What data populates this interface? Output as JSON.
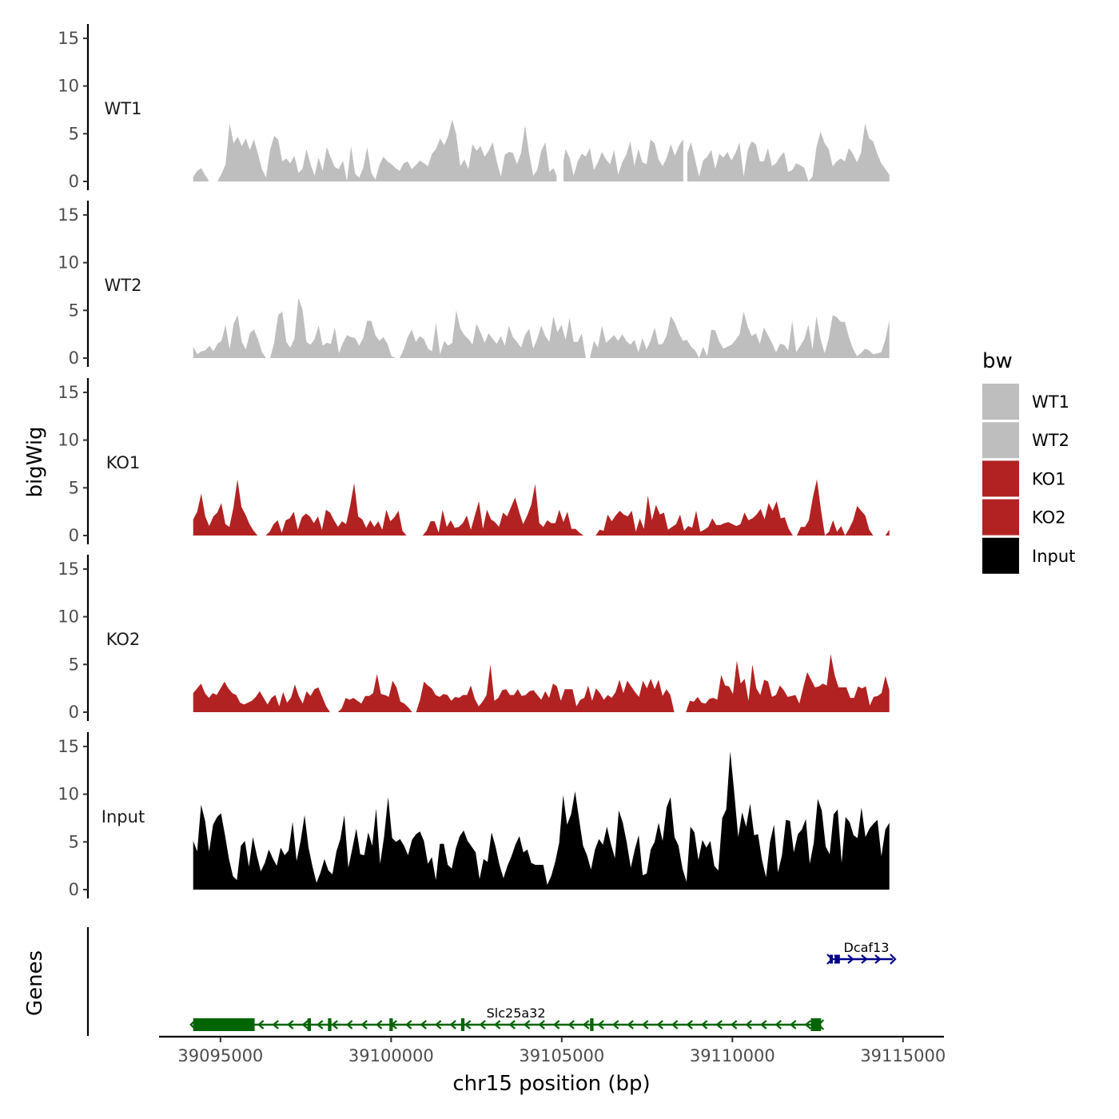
{
  "chart_data": {
    "type": "area",
    "layout": "stacked-genome-tracks",
    "ylabel": "bigWig",
    "xlabel": "chr15 position (bp)",
    "genes_label": "Genes",
    "x_range": [
      39093200,
      39116200
    ],
    "x_ticks": [
      39095000,
      39100000,
      39105000,
      39110000,
      39115000
    ],
    "x_tick_labels": [
      "39095000",
      "39100000",
      "39105000",
      "39110000",
      "39115000"
    ],
    "y_range": [
      0,
      16.5
    ],
    "y_ticks": [
      0,
      5,
      10,
      15
    ],
    "y_tick_labels": [
      "0",
      "5",
      "10",
      "15"
    ],
    "data_x_start": 39094200,
    "data_x_end": 39114600,
    "bin_size": 200,
    "legend": {
      "title": "bw",
      "entries": [
        {
          "label": "WT1",
          "color": "#bebebe"
        },
        {
          "label": "WT2",
          "color": "#bebebe"
        },
        {
          "label": "KO1",
          "color": "#b22222"
        },
        {
          "label": "KO2",
          "color": "#b22222"
        },
        {
          "label": "Input",
          "color": "#000000"
        }
      ]
    },
    "series": [
      {
        "name": "WT1",
        "color": "#bebebe",
        "values": [
          0.5,
          1.1,
          1.4,
          0.6,
          0,
          0,
          0,
          0.8,
          1.8,
          6.1,
          4.0,
          4.7,
          3.7,
          4.5,
          3.3,
          4.4,
          2.9,
          1.3,
          0.4,
          3.3,
          4.8,
          4.4,
          2.1,
          2.4,
          1.9,
          2.7,
          0.9,
          1.3,
          3.4,
          1.8,
          0.6,
          2.5,
          1.1,
          3.6,
          2.5,
          1.5,
          1.3,
          2.2,
          0,
          3.7,
          0.8,
          0.4,
          1.4,
          3.6,
          0.9,
          0.2,
          1.7,
          2.6,
          2.1,
          1.8,
          1.4,
          1.1,
          1.9,
          2.1,
          1.3,
          1.7,
          2.2,
          1.9,
          1.6,
          2.9,
          3.4,
          4.5,
          3.8,
          4.8,
          6.5,
          4.9,
          1.6,
          2.3,
          1.3,
          3.9,
          3.2,
          3.7,
          2.6,
          3.2,
          4.1,
          2.1,
          0.5,
          2.8,
          3.1,
          3.0,
          1.8,
          3.0,
          5.9,
          2.9,
          0.6,
          1.2,
          3.2,
          4.1,
          1.0,
          1.4,
          0.4,
          0.9,
          3.4,
          2.5,
          0.6,
          2.1,
          2.9,
          2.6,
          3.5,
          1.2,
          2.0,
          3.1,
          2.3,
          1.8,
          3.3,
          0.7,
          2.0,
          2.8,
          4.2,
          1.6,
          3.4,
          2.0,
          1.8,
          4.4,
          4.0,
          2.3,
          1.6,
          2.5,
          3.9,
          2.7,
          3.7,
          4.4,
          2.9,
          4.1,
          2.3,
          0.5,
          2.2,
          2.6,
          3.3,
          1.3,
          2.9,
          2.5,
          3.1,
          2.2,
          3.0,
          4.1,
          0.5,
          3.3,
          4.2,
          3.9,
          2.1,
          2.1,
          3.5,
          1.6,
          1.9,
          2.6,
          3.1,
          1.0,
          1.2,
          1.9,
          1.7,
          1.4,
          0,
          0.5,
          3.6,
          5.2,
          4.0,
          3.4,
          1.6,
          2.1,
          2.4,
          2.1,
          3.5,
          2.9,
          2.0,
          3.0,
          6.1,
          4.5,
          4.2,
          2.9,
          1.9,
          1.3,
          0.7
        ],
        "gaps": [
          [
            39094650,
            39094870
          ],
          [
            39104850,
            39105050
          ],
          [
            39108560,
            39108680
          ]
        ]
      },
      {
        "name": "WT2",
        "color": "#bebebe",
        "values": [
          1.2,
          0.4,
          0.7,
          0.8,
          1.3,
          0.7,
          1.5,
          1.8,
          3.5,
          0.9,
          3.6,
          4.5,
          1.7,
          0.9,
          2.6,
          3.0,
          2.0,
          0.6,
          0,
          0,
          1.6,
          4.5,
          4.9,
          1.7,
          1.1,
          2.0,
          6.3,
          5.1,
          1.7,
          1.4,
          2.0,
          3.4,
          1.3,
          1.6,
          1.5,
          3.2,
          0.5,
          1.6,
          2.4,
          2.2,
          2.1,
          1.3,
          2.1,
          3.9,
          3.9,
          2.4,
          1.8,
          2.2,
          1.5,
          0.2,
          0,
          0,
          0.9,
          2.2,
          3.0,
          1.7,
          2.3,
          2.0,
          1.0,
          0.7,
          3.7,
          0.4,
          1.8,
          1.3,
          1.6,
          5.0,
          3.1,
          2.4,
          2.0,
          1.4,
          3.6,
          2.7,
          1.6,
          2.6,
          2.0,
          1.5,
          2.3,
          1.3,
          3.4,
          2.2,
          1.7,
          1.1,
          2.4,
          3.1,
          1.0,
          2.0,
          3.4,
          2.3,
          1.7,
          4.4,
          2.7,
          3.5,
          1.9,
          4.2,
          1.7,
          1.7,
          2.6,
          0,
          0,
          1.8,
          1.1,
          3.4,
          1.6,
          2.0,
          2.4,
          1.8,
          2.5,
          1.8,
          1.4,
          1.9,
          0.6,
          2.1,
          0.9,
          1.8,
          3.2,
          1.4,
          1.5,
          2.4,
          4.4,
          3.7,
          2.6,
          1.8,
          1.9,
          1.2,
          0.8,
          0,
          1.2,
          0.2,
          3.0,
          2.9,
          1.7,
          1.0,
          1.2,
          1.4,
          1.9,
          2.5,
          4.9,
          3.3,
          2.3,
          2.6,
          1.5,
          3.2,
          2.4,
          1.6,
          0.6,
          1.5,
          1.4,
          0.8,
          3.9,
          0.6,
          1.3,
          2.0,
          3.5,
          0.9,
          4.4,
          2.0,
          0.5,
          2.0,
          4.5,
          4.3,
          3.8,
          3.8,
          2.2,
          1.0,
          0.2,
          0.5,
          1.0,
          0.8,
          0.4,
          0.5,
          0.6,
          1.9,
          4.0
        ]
      },
      {
        "name": "KO1",
        "color": "#b22222",
        "values": [
          1.7,
          2.5,
          4.4,
          2.0,
          1.0,
          2.0,
          2.4,
          3.4,
          1.2,
          0.9,
          2.9,
          5.9,
          3.0,
          2.2,
          1.2,
          0.5,
          0,
          0,
          0,
          0.4,
          1.2,
          1.6,
          0.3,
          1.6,
          1.8,
          2.5,
          0.6,
          1.9,
          2.3,
          2.0,
          1.3,
          2.0,
          0.6,
          2.7,
          2.4,
          1.6,
          0.9,
          1.5,
          1.2,
          3.1,
          5.5,
          2.0,
          1.7,
          0.8,
          1.6,
          0.9,
          1.5,
          0.6,
          2.7,
          1.5,
          1.9,
          2.6,
          0.5,
          0,
          0,
          0,
          0,
          0,
          0.5,
          1.5,
          1.5,
          0.3,
          2.7,
          0.9,
          1.6,
          0.8,
          0.9,
          1.3,
          2.1,
          0.6,
          2.1,
          3.6,
          0.7,
          2.7,
          1.7,
          1.4,
          0.9,
          2.4,
          2.0,
          3.0,
          4.0,
          2.5,
          1.2,
          2.1,
          3.2,
          5.4,
          1.3,
          0.9,
          1.6,
          1.3,
          1.3,
          2.7,
          1.4,
          2.5,
          0.7,
          0.7,
          0.3,
          0,
          0,
          0,
          0,
          0.6,
          0.5,
          2.2,
          1.5,
          2.1,
          2.6,
          2.2,
          2.0,
          2.6,
          0.4,
          1.8,
          0.7,
          4.2,
          1.6,
          3.2,
          2.2,
          2.4,
          0.6,
          0.9,
          1.2,
          2.2,
          0.5,
          1.0,
          0.8,
          2.6,
          0.4,
          0.6,
          0.9,
          1.8,
          1.1,
          1.1,
          1.3,
          1.4,
          1.2,
          1.0,
          1.2,
          2.4,
          1.6,
          1.8,
          2.2,
          2.8,
          1.7,
          3.4,
          2.6,
          3.6,
          1.8,
          1.9,
          0.7,
          0,
          0,
          0.9,
          0.9,
          1.6,
          4.0,
          5.9,
          2.7,
          0,
          0.4,
          1.6,
          0.4,
          1.0,
          0,
          0.7,
          1.6,
          3.1,
          2.6,
          2.1,
          0.6,
          0,
          0,
          0,
          0,
          0.6
        ]
      },
      {
        "name": "KO2",
        "color": "#b22222",
        "values": [
          2.0,
          2.5,
          3.0,
          2.0,
          1.5,
          2.0,
          1.8,
          2.5,
          3.2,
          2.5,
          2.0,
          1.8,
          1.0,
          0.8,
          1.0,
          1.2,
          1.6,
          2.2,
          1.5,
          0.8,
          1.5,
          1.8,
          0.6,
          2.1,
          1.0,
          1.5,
          2.9,
          1.7,
          0.9,
          2.2,
          1.7,
          2.4,
          2.6,
          1.6,
          0.6,
          0,
          0,
          0,
          0.4,
          1.5,
          1.3,
          1.5,
          1.2,
          0.9,
          1.7,
          1.7,
          2.0,
          4.0,
          1.9,
          1.8,
          1.6,
          3.3,
          2.6,
          1.1,
          0.9,
          0.5,
          0,
          0,
          1.3,
          3.2,
          2.8,
          2.5,
          1.8,
          1.6,
          1.9,
          1.8,
          1.2,
          1.6,
          1.5,
          1.8,
          1.8,
          2.8,
          1.4,
          0.6,
          1.1,
          1.8,
          5.0,
          1.2,
          1.5,
          2.3,
          2.4,
          1.8,
          1.8,
          2.4,
          1.7,
          1.8,
          2.2,
          2.3,
          1.8,
          1.3,
          2.2,
          1.5,
          3.0,
          2.7,
          1.2,
          2.4,
          2.4,
          2.4,
          0.6,
          1.3,
          1.5,
          2.8,
          1.2,
          2.5,
          2.0,
          1.3,
          1.8,
          1.5,
          2.1,
          3.4,
          2.0,
          3.3,
          2.7,
          2.1,
          1.6,
          3.3,
          2.5,
          3.5,
          2.4,
          3.4,
          1.7,
          2.4,
          1.8,
          0,
          0,
          0,
          0,
          1.2,
          1.1,
          1.6,
          1.0,
          0.9,
          1.4,
          1.5,
          1.3,
          3.9,
          2.8,
          2.7,
          1.9,
          5.4,
          3.0,
          3.5,
          1.2,
          5.0,
          2.5,
          1.8,
          3.4,
          3.2,
          1.6,
          1.8,
          2.8,
          2.3,
          1.6,
          1.7,
          1.8,
          0.9,
          2.6,
          4.2,
          3.4,
          2.6,
          2.7,
          3.0,
          2.8,
          6.1,
          3.9,
          2.6,
          2.6,
          2.6,
          1.5,
          1.5,
          2.7,
          2.5,
          2.7,
          0.7,
          1.6,
          1.7,
          2.0,
          3.8,
          2.3
        ]
      },
      {
        "name": "Input",
        "color": "#000000",
        "values": [
          5.1,
          4.0,
          8.9,
          7.2,
          4.0,
          6.8,
          7.6,
          8.0,
          5.7,
          3.2,
          1.4,
          1.0,
          4.6,
          5.1,
          2.4,
          5.5,
          3.6,
          1.9,
          2.8,
          4.2,
          3.3,
          2.5,
          4.4,
          3.6,
          4.1,
          7.1,
          3.0,
          5.1,
          7.8,
          4.4,
          2.4,
          0.7,
          1.8,
          3.2,
          2.0,
          1.6,
          4.0,
          5.3,
          7.8,
          2.3,
          4.3,
          6.4,
          3.7,
          3.6,
          6.0,
          4.6,
          8.5,
          2.7,
          5.6,
          9.7,
          5.4,
          5.0,
          5.3,
          4.6,
          3.6,
          5.2,
          5.8,
          6.1,
          5.1,
          2.7,
          3.4,
          1.0,
          4.8,
          4.8,
          2.6,
          2.2,
          4.3,
          5.6,
          6.2,
          5.1,
          4.5,
          3.9,
          1.1,
          3.2,
          2.9,
          6.0,
          4.5,
          2.6,
          1.2,
          2.5,
          3.5,
          4.7,
          5.6,
          3.9,
          4.2,
          2.8,
          2.6,
          2.6,
          2.6,
          0.5,
          1.4,
          2.9,
          4.9,
          9.9,
          6.8,
          7.9,
          10.3,
          7.4,
          4.6,
          3.6,
          2.1,
          4.2,
          5.3,
          4.7,
          6.6,
          4.8,
          3.3,
          8.3,
          7.0,
          4.9,
          2.3,
          4.2,
          5.7,
          1.5,
          1.7,
          4.2,
          5.0,
          7.0,
          5.1,
          8.6,
          9.7,
          5.5,
          4.6,
          2.2,
          0.8,
          6.6,
          6.0,
          3.1,
          5.2,
          4.4,
          5.1,
          2.5,
          2.0,
          7.5,
          8.4,
          14.5,
          10.2,
          5.5,
          8.1,
          6.6,
          9.0,
          5.7,
          5.8,
          3.1,
          1.3,
          5.0,
          6.8,
          1.8,
          3.6,
          7.3,
          7.2,
          3.9,
          5.8,
          6.3,
          7.4,
          2.7,
          4.9,
          9.5,
          8.3,
          4.5,
          3.7,
          7.9,
          8.4,
          2.8,
          7.6,
          7.1,
          5.7,
          5.4,
          8.6,
          5.5,
          6.4,
          6.9,
          7.3,
          3.5,
          6.3,
          7.0
        ]
      }
    ],
    "genes": [
      {
        "name": "Slc25a32",
        "strand": "-",
        "color": "#006400",
        "start": 39094200,
        "end": 39112600,
        "exons": [
          [
            39094200,
            39096000
          ],
          [
            39097550,
            39097650
          ],
          [
            39098150,
            39098250
          ],
          [
            39099950,
            39100050
          ],
          [
            39102050,
            39102150
          ],
          [
            39105830,
            39105930
          ],
          [
            39112300,
            39112600
          ]
        ]
      },
      {
        "name": "Dcaf13",
        "strand": "+",
        "color": "#00008b",
        "start": 39112850,
        "end": 39114700,
        "exons": [
          [
            39112850,
            39112900
          ],
          [
            39113000,
            39113150
          ]
        ]
      }
    ]
  }
}
